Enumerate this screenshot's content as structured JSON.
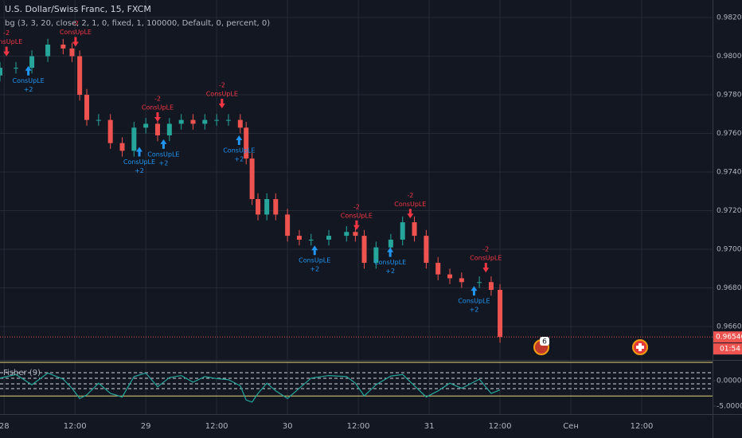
{
  "chart_data": {
    "type": "candlestick",
    "title": "U.S. Dollar/Swiss Franc, 15, FXCM",
    "subtitle": "bg (3, 3, 20, close, 2, 1, 0, fixed, 1, 100000, Default, 0, percent, 0)",
    "up_color": "#26a69a",
    "down_color": "#ef5350",
    "x": [
      -0.7,
      2,
      4.7,
      7.4,
      10,
      11.5,
      12.8,
      14,
      16,
      18,
      20,
      22,
      24,
      26,
      28,
      30,
      32,
      34,
      36,
      38,
      40,
      41,
      42,
      43,
      44.5,
      46,
      48,
      50,
      52,
      55,
      58,
      59.5,
      61,
      63,
      65.5,
      67.5,
      69.5,
      71.5,
      73.5,
      75.5,
      77.5,
      80.5,
      82.5,
      84
    ],
    "open": [
      0.979,
      0.9794,
      0.9794,
      0.98,
      0.9806,
      0.9804,
      0.98,
      0.978,
      0.9767,
      0.9767,
      0.9755,
      0.9751,
      0.9763,
      0.9765,
      0.9759,
      0.9765,
      0.9767,
      0.9765,
      0.9767,
      0.9767,
      0.9767,
      0.9763,
      0.9747,
      0.9726,
      0.9718,
      0.9726,
      0.9718,
      0.9707,
      0.9705,
      0.9705,
      0.9707,
      0.9709,
      0.9707,
      0.9693,
      0.9701,
      0.9705,
      0.9714,
      0.9707,
      0.9693,
      0.9687,
      0.9685,
      0.9683,
      0.9683,
      0.9679
    ],
    "high": [
      0.9797,
      0.9797,
      0.9803,
      0.9809,
      0.9809,
      0.9807,
      0.9803,
      0.9783,
      0.977,
      0.977,
      0.9758,
      0.9766,
      0.9768,
      0.9768,
      0.9768,
      0.977,
      0.977,
      0.977,
      0.977,
      0.977,
      0.977,
      0.9766,
      0.975,
      0.9729,
      0.9729,
      0.9729,
      0.9721,
      0.971,
      0.9708,
      0.971,
      0.9712,
      0.9712,
      0.971,
      0.9704,
      0.9708,
      0.9717,
      0.9717,
      0.971,
      0.9696,
      0.969,
      0.9688,
      0.9686,
      0.9686,
      0.9682
    ],
    "low": [
      0.9787,
      0.9791,
      0.9791,
      0.9797,
      0.9801,
      0.9797,
      0.9777,
      0.9764,
      0.9764,
      0.9752,
      0.9748,
      0.9748,
      0.976,
      0.9756,
      0.9756,
      0.9762,
      0.9762,
      0.9762,
      0.9764,
      0.9764,
      0.976,
      0.9744,
      0.9723,
      0.9715,
      0.9715,
      0.9715,
      0.9704,
      0.9702,
      0.9702,
      0.9702,
      0.9704,
      0.9704,
      0.969,
      0.969,
      0.9698,
      0.9702,
      0.9704,
      0.969,
      0.9684,
      0.9682,
      0.968,
      0.968,
      0.9676,
      0.96516
    ],
    "close": [
      0.9794,
      0.9794,
      0.98,
      0.9806,
      0.9804,
      0.98,
      0.978,
      0.9767,
      0.9767,
      0.9755,
      0.9751,
      0.9763,
      0.9765,
      0.9759,
      0.9765,
      0.9767,
      0.9765,
      0.9767,
      0.9767,
      0.9767,
      0.9763,
      0.9747,
      0.9726,
      0.9718,
      0.9726,
      0.9718,
      0.9707,
      0.9705,
      0.9705,
      0.9707,
      0.9709,
      0.9707,
      0.9693,
      0.9701,
      0.9705,
      0.9714,
      0.9707,
      0.9693,
      0.9687,
      0.9685,
      0.9683,
      0.9683,
      0.9679,
      0.96546
    ],
    "xlim": [
      -0.7,
      120
    ],
    "xticks": [
      {
        "value": 0,
        "label": "28"
      },
      {
        "value": 12,
        "label": "12:00"
      },
      {
        "value": 24,
        "label": "29"
      },
      {
        "value": 36,
        "label": "12:00"
      },
      {
        "value": 48,
        "label": "30"
      },
      {
        "value": 60,
        "label": "12:00"
      },
      {
        "value": 72,
        "label": "31"
      },
      {
        "value": 84,
        "label": "12:00"
      },
      {
        "value": 96,
        "label": "Сен"
      },
      {
        "value": 108,
        "label": "12:00"
      }
    ],
    "ylim": [
      0.96427,
      0.98291
    ],
    "yticks": [
      {
        "value": 0.966,
        "label": "0.96600"
      },
      {
        "value": 0.968,
        "label": "0.96800"
      },
      {
        "value": 0.97,
        "label": "0.97000"
      },
      {
        "value": 0.972,
        "label": "0.97200"
      },
      {
        "value": 0.974,
        "label": "0.97400"
      },
      {
        "value": 0.976,
        "label": "0.97600"
      },
      {
        "value": 0.978,
        "label": "0.97800"
      },
      {
        "value": 0.98,
        "label": "0.98000"
      },
      {
        "value": 0.982,
        "label": "0.98200"
      }
    ],
    "grid": true,
    "last_price": {
      "value": 0.96546,
      "label": "0.96546"
    },
    "countdown": "01:54",
    "event_badge": "6",
    "buy_signals": [
      {
        "x": 4.1,
        "price": 0.9795,
        "label": "ConsUpLE",
        "amount": "+2"
      },
      {
        "x": 22.9,
        "price": 0.9753,
        "label": "ConsUpLE",
        "amount": "+2"
      },
      {
        "x": 27,
        "price": 0.9757,
        "label": "ConsUpLE",
        "amount": "+2"
      },
      {
        "x": 39.8,
        "price": 0.9759,
        "label": "ConsUpLE",
        "amount": "+2"
      },
      {
        "x": 52.6,
        "price": 0.9702,
        "label": "ConsUpLE",
        "amount": "+2"
      },
      {
        "x": 65.4,
        "price": 0.9701,
        "label": "ConsUpLE",
        "amount": "+2"
      },
      {
        "x": 79.6,
        "price": 0.9681,
        "label": "ConsUpLE",
        "amount": "+2"
      }
    ],
    "sell_signals": [
      {
        "x": 0.4,
        "price": 0.98,
        "label": "ConsUpLE",
        "amount": "-2"
      },
      {
        "x": 12.1,
        "price": 0.9805,
        "label": "ConsUpLE",
        "amount": "-2"
      },
      {
        "x": 26,
        "price": 0.9766,
        "label": "ConsUpLE",
        "amount": "-2"
      },
      {
        "x": 36.9,
        "price": 0.9773,
        "label": "ConsUpLE",
        "amount": "-2"
      },
      {
        "x": 59.7,
        "price": 0.971,
        "label": "ConsUpLE",
        "amount": "-2"
      },
      {
        "x": 68.8,
        "price": 0.9716,
        "label": "ConsUpLE",
        "amount": "-2"
      },
      {
        "x": 81.6,
        "price": 0.9688,
        "label": "ConsUpLE",
        "amount": "-2"
      }
    ],
    "indicator": {
      "title": "Fisher (9)",
      "color": "#26a69a",
      "values": [
        0.5,
        1.2,
        -0.8,
        1.5,
        0.3,
        -1.5,
        -3.5,
        -2.8,
        -0.5,
        -2.5,
        -3.2,
        0.8,
        1.5,
        -1.2,
        0.6,
        1.0,
        -0.3,
        0.8,
        0.4,
        0.2,
        -1.0,
        -3.8,
        -4.2,
        -2.5,
        -0.5,
        -2.0,
        -3.5,
        -1.5,
        0.5,
        1.0,
        0.8,
        -0.5,
        -3.0,
        -0.8,
        0.9,
        1.2,
        -1.0,
        -3.2,
        -2.0,
        -0.5,
        -1.5,
        0.3,
        -2.5,
        -1.8
      ],
      "ylim": [
        -6.56,
        4.06
      ],
      "yticks": [
        {
          "value": 0,
          "label": "0.0000"
        },
        {
          "value": -5,
          "label": "-5.0000"
        }
      ],
      "solid_levels": [
        3.6,
        -3.0
      ],
      "dashed_levels": [
        1.56,
        0.47,
        -0.62,
        -1.56
      ]
    }
  }
}
